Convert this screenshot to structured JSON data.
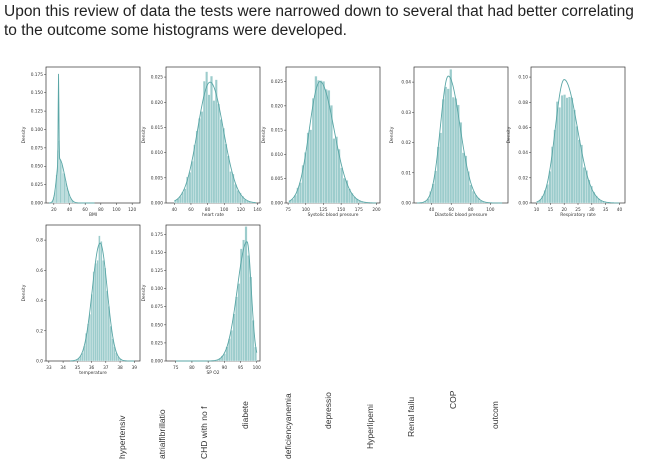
{
  "intro_text": "Upon this review of data the tests were narrowed down to several that had better correlating to the outcome some histograms were developed.",
  "histogram_color": "#9ccccc",
  "line_color": "#5aa6a6",
  "chart_data": [
    {
      "type": "histogram",
      "xlabel": "BMI",
      "ylabel": "Density",
      "xticks": [
        "20",
        "40",
        "60",
        "80",
        "100",
        "120"
      ],
      "xrange": [
        10,
        130
      ],
      "yticks": [
        "0.000",
        "0.025",
        "0.050",
        "0.075",
        "0.100",
        "0.125",
        "0.150",
        "0.175"
      ],
      "yrange": [
        0,
        0.185
      ],
      "dist": {
        "mode": 27,
        "left": 3.5,
        "right": 7,
        "peak": 0.06,
        "spike_at": 26,
        "spike": 0.178,
        "xmin": 14,
        "xmax": 72
      }
    },
    {
      "type": "histogram",
      "xlabel": "heart rate",
      "ylabel": "Density",
      "xticks": [
        "40",
        "60",
        "80",
        "100",
        "120",
        "140"
      ],
      "xrange": [
        30,
        143
      ],
      "yticks": [
        "0.000",
        "0.005",
        "0.010",
        "0.015",
        "0.020",
        "0.025"
      ],
      "yrange": [
        0,
        0.027
      ],
      "dist": {
        "mode": 83,
        "left": 15,
        "right": 16,
        "peak": 0.024,
        "xmin": 40,
        "xmax": 138
      }
    },
    {
      "type": "histogram",
      "xlabel": "Systolic blood pressure",
      "ylabel": "Density",
      "xticks": [
        "75",
        "100",
        "125",
        "150",
        "175",
        "200"
      ],
      "xrange": [
        72,
        205
      ],
      "yticks": [
        "0.000",
        "0.005",
        "0.010",
        "0.015",
        "0.020",
        "0.025"
      ],
      "yrange": [
        0,
        0.028
      ],
      "dist": {
        "mode": 120,
        "left": 15,
        "right": 20,
        "peak": 0.025,
        "xmin": 76,
        "xmax": 200
      }
    },
    {
      "type": "histogram",
      "xlabel": "Diastolic blood pressure",
      "ylabel": "Density",
      "xticks": [
        "40",
        "60",
        "80",
        "100"
      ],
      "xrange": [
        22,
        118
      ],
      "yticks": [
        "0.00",
        "0.01",
        "0.02",
        "0.03",
        "0.04"
      ],
      "yrange": [
        0,
        0.045
      ],
      "dist": {
        "mode": 57,
        "left": 8,
        "right": 12,
        "peak": 0.042,
        "xmin": 25,
        "xmax": 112
      }
    },
    {
      "type": "histogram",
      "xlabel": "Respiratory rate",
      "ylabel": "Density",
      "xticks": [
        "10",
        "15",
        "20",
        "25",
        "30",
        "35",
        "40"
      ],
      "xrange": [
        8,
        42
      ],
      "yticks": [
        "0.00",
        "0.02",
        "0.04",
        "0.06",
        "0.08",
        "0.10"
      ],
      "yrange": [
        0,
        0.108
      ],
      "dist": {
        "mode": 20,
        "left": 3.2,
        "right": 4.8,
        "peak": 0.098,
        "xmin": 10,
        "xmax": 40
      }
    },
    {
      "type": "histogram",
      "xlabel": "temperature",
      "ylabel": "Density",
      "xticks": [
        "33",
        "34",
        "35",
        "36",
        "37",
        "38",
        "39"
      ],
      "xrange": [
        32.8,
        39.4
      ],
      "yticks": [
        "0.0",
        "0.2",
        "0.4",
        "0.6",
        "0.8"
      ],
      "yrange": [
        0,
        0.9
      ],
      "dist": {
        "mode": 36.6,
        "left": 0.55,
        "right": 0.5,
        "peak": 0.78,
        "xmin": 34.5,
        "xmax": 39
      }
    },
    {
      "type": "histogram",
      "xlabel": "SP O2",
      "ylabel": "Density",
      "xticks": [
        "75",
        "80",
        "85",
        "90",
        "95",
        "100"
      ],
      "xrange": [
        72,
        101
      ],
      "yticks": [
        "0.000",
        "0.025",
        "0.050",
        "0.075",
        "0.100",
        "0.125",
        "0.150",
        "0.175"
      ],
      "yrange": [
        0,
        0.188
      ],
      "dist": {
        "mode": 97,
        "left": 3,
        "right": 1.3,
        "peak": 0.165,
        "xmin": 75,
        "xmax": 100
      }
    }
  ],
  "column_labels": [
    "hypertensiv",
    "atrialfibrillatio",
    "CHD with no f",
    "diabete",
    "deficiencyanemia",
    "depressio",
    "Hyperlipemi",
    "Renal failu",
    "COP",
    "outcom"
  ]
}
